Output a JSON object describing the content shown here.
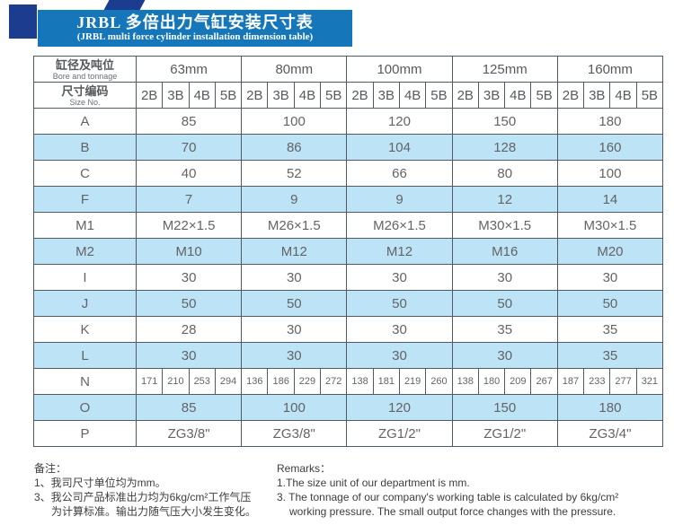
{
  "title": {
    "zh": "JRBL 多倍出力气缸安装尺寸表",
    "en": "(JRBL multi force cylinder installation dimension table)"
  },
  "table": {
    "corner": {
      "zh": "缸径及吨位",
      "en": "Bore and tonnage"
    },
    "size_no": {
      "zh": "尺寸编码",
      "en": "Size No."
    },
    "bores": [
      "63mm",
      "80mm",
      "100mm",
      "125mm",
      "160mm"
    ],
    "size_codes": [
      "2B",
      "3B",
      "4B",
      "5B"
    ],
    "rows": [
      {
        "label": "A",
        "shade": false,
        "span": true,
        "values": [
          "85",
          "100",
          "120",
          "150",
          "180"
        ]
      },
      {
        "label": "B",
        "shade": true,
        "span": true,
        "values": [
          "70",
          "86",
          "104",
          "128",
          "160"
        ]
      },
      {
        "label": "C",
        "shade": false,
        "span": true,
        "values": [
          "40",
          "52",
          "66",
          "80",
          "100"
        ]
      },
      {
        "label": "F",
        "shade": true,
        "span": true,
        "values": [
          "7",
          "9",
          "9",
          "12",
          "14"
        ]
      },
      {
        "label": "M1",
        "shade": false,
        "span": true,
        "values": [
          "M22×1.5",
          "M26×1.5",
          "M26×1.5",
          "M30×1.5",
          "M30×1.5"
        ]
      },
      {
        "label": "M2",
        "shade": true,
        "span": true,
        "values": [
          "M10",
          "M12",
          "M12",
          "M16",
          "M20"
        ]
      },
      {
        "label": "I",
        "shade": false,
        "span": true,
        "values": [
          "30",
          "30",
          "30",
          "30",
          "30"
        ]
      },
      {
        "label": "J",
        "shade": true,
        "span": true,
        "values": [
          "50",
          "50",
          "50",
          "50",
          "50"
        ]
      },
      {
        "label": "K",
        "shade": false,
        "span": true,
        "values": [
          "28",
          "30",
          "30",
          "35",
          "35"
        ]
      },
      {
        "label": "L",
        "shade": true,
        "span": true,
        "values": [
          "30",
          "30",
          "30",
          "30",
          "35"
        ]
      },
      {
        "label": "N",
        "shade": false,
        "span": false,
        "values": [
          [
            "171",
            "210",
            "253",
            "294"
          ],
          [
            "136",
            "186",
            "229",
            "272"
          ],
          [
            "138",
            "181",
            "219",
            "260"
          ],
          [
            "138",
            "180",
            "209",
            "267"
          ],
          [
            "187",
            "233",
            "277",
            "321"
          ]
        ]
      },
      {
        "label": "O",
        "shade": true,
        "span": true,
        "values": [
          "85",
          "100",
          "120",
          "150",
          "180"
        ]
      },
      {
        "label": "P",
        "shade": false,
        "span": true,
        "values": [
          "ZG3/8\"",
          "ZG3/8\"",
          "ZG1/2\"",
          "ZG1/2\"",
          "ZG3/4\""
        ]
      }
    ]
  },
  "notes": {
    "zh": {
      "heading": "备注：",
      "lines": [
        "1、我司尺寸单位均为mm。",
        "3、我公司产品标准出力均为6kg/cm²工作气压",
        "为计算标准。输出力随气压大小发生变化。"
      ]
    },
    "en": {
      "heading": "Remarks：",
      "lines": [
        "1.The size unit of our department is mm.",
        "3. The tonnage of our company's working table is calculated by 6kg/cm²",
        "working pressure. The small output force changes with the pressure."
      ]
    }
  },
  "colors": {
    "banner_blue": "#1577b9",
    "navy": "#1c3d8f",
    "header_gray": "#e3e3df",
    "row_blue": "#bde3f6",
    "border": "#4f5a64"
  }
}
